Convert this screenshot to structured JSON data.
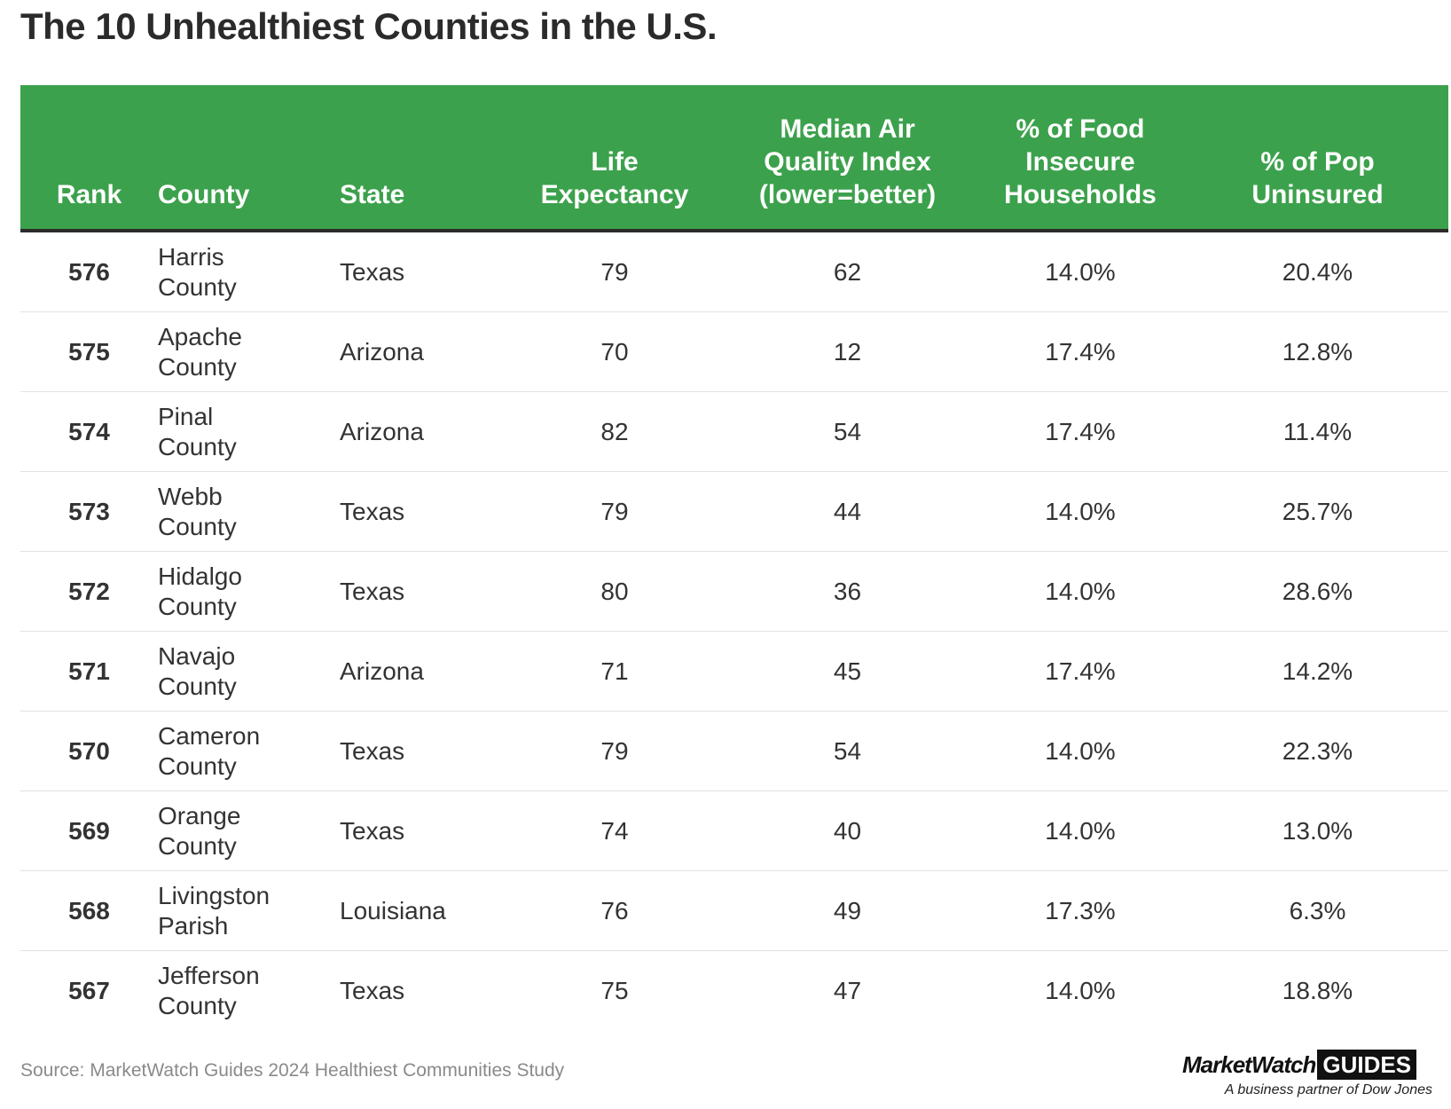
{
  "title": "The 10 Unhealthiest Counties in the U.S.",
  "source": "Source: MarketWatch Guides 2024 Healthiest Communities Study",
  "logo": {
    "brand_a": "MarketWatch",
    "brand_b": "GUIDES",
    "tagline": "A business partner of Dow Jones"
  },
  "colors": {
    "header_bg": "#3ca14c",
    "header_text": "#ffffff",
    "body_text": "#333333"
  },
  "chart_data": {
    "type": "table",
    "title": "The 10 Unhealthiest Counties in the U.S.",
    "columns": {
      "rank": "Rank",
      "county": "County",
      "state": "State",
      "life_1": "Life",
      "life_2": "Expectancy",
      "air_1": "Median Air",
      "air_2": "Quality Index",
      "air_3": "(lower=better)",
      "food_1": "% of Food",
      "food_2": "Insecure",
      "food_3": "Households",
      "unins_1": "% of Pop",
      "unins_2": "Uninsured"
    },
    "rows": [
      {
        "rank": "576",
        "county_1": "Harris",
        "county_2": "County",
        "state": "Texas",
        "life_expectancy": "79",
        "air_quality": "62",
        "food_insecure": "14.0%",
        "uninsured": "20.4%"
      },
      {
        "rank": "575",
        "county_1": "Apache",
        "county_2": "County",
        "state": "Arizona",
        "life_expectancy": "70",
        "air_quality": "12",
        "food_insecure": "17.4%",
        "uninsured": "12.8%"
      },
      {
        "rank": "574",
        "county_1": "Pinal",
        "county_2": "County",
        "state": "Arizona",
        "life_expectancy": "82",
        "air_quality": "54",
        "food_insecure": "17.4%",
        "uninsured": "11.4%"
      },
      {
        "rank": "573",
        "county_1": "Webb",
        "county_2": "County",
        "state": "Texas",
        "life_expectancy": "79",
        "air_quality": "44",
        "food_insecure": "14.0%",
        "uninsured": "25.7%"
      },
      {
        "rank": "572",
        "county_1": "Hidalgo",
        "county_2": "County",
        "state": "Texas",
        "life_expectancy": "80",
        "air_quality": "36",
        "food_insecure": "14.0%",
        "uninsured": "28.6%"
      },
      {
        "rank": "571",
        "county_1": "Navajo",
        "county_2": "County",
        "state": "Arizona",
        "life_expectancy": "71",
        "air_quality": "45",
        "food_insecure": "17.4%",
        "uninsured": "14.2%"
      },
      {
        "rank": "570",
        "county_1": "Cameron",
        "county_2": "County",
        "state": "Texas",
        "life_expectancy": "79",
        "air_quality": "54",
        "food_insecure": "14.0%",
        "uninsured": "22.3%"
      },
      {
        "rank": "569",
        "county_1": "Orange",
        "county_2": "County",
        "state": "Texas",
        "life_expectancy": "74",
        "air_quality": "40",
        "food_insecure": "14.0%",
        "uninsured": "13.0%"
      },
      {
        "rank": "568",
        "county_1": "Livingston",
        "county_2": "Parish",
        "state": "Louisiana",
        "life_expectancy": "76",
        "air_quality": "49",
        "food_insecure": "17.3%",
        "uninsured": "6.3%"
      },
      {
        "rank": "567",
        "county_1": "Jefferson",
        "county_2": "County",
        "state": "Texas",
        "life_expectancy": "75",
        "air_quality": "47",
        "food_insecure": "14.0%",
        "uninsured": "18.8%"
      }
    ]
  }
}
